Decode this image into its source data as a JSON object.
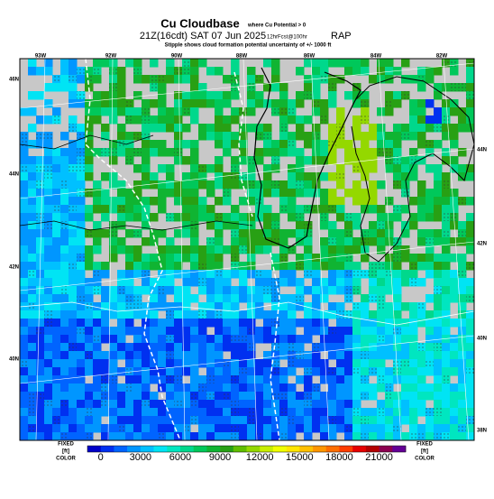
{
  "header": {
    "title": "Cu Cloudbase",
    "title_note": "where Cu Potential > 0",
    "valid": "21Z(16cdt) SAT 07 Jun 2025",
    "forecast": "12hrFcst@100hr",
    "model": "RAP",
    "subtitle": "Stipple shows cloud formation potential uncertainty of +/- 1000 ft"
  },
  "map": {
    "lon_labels": [
      "93W",
      "92W",
      "90W",
      "88W",
      "86W",
      "84W",
      "82W"
    ],
    "lat_labels_left": [
      "46N",
      "44N",
      "42N",
      "40N"
    ],
    "lat_labels_right": [
      "44N",
      "42N",
      "40N",
      "38N"
    ]
  },
  "colorbar": {
    "left_labels": [
      "FIXED",
      "[ft]",
      "COLOR"
    ],
    "right_labels": [
      "FIXED",
      "[ft]",
      "COLOR"
    ],
    "range": [
      -1000,
      23000
    ],
    "ticks": [
      0,
      3000,
      6000,
      9000,
      12000,
      15000,
      18000,
      21000
    ],
    "colors": [
      "#0000c8",
      "#0030f0",
      "#0064ff",
      "#0096ff",
      "#00c0ff",
      "#00e4f4",
      "#00e6c0",
      "#00d88c",
      "#00c85a",
      "#10b432",
      "#28a014",
      "#60be00",
      "#94d800",
      "#c8ee00",
      "#f0ff00",
      "#ffe600",
      "#ffc000",
      "#ff9600",
      "#ff6e00",
      "#ff3c00",
      "#e60000",
      "#b40000",
      "#8c0050",
      "#640096"
    ]
  }
}
